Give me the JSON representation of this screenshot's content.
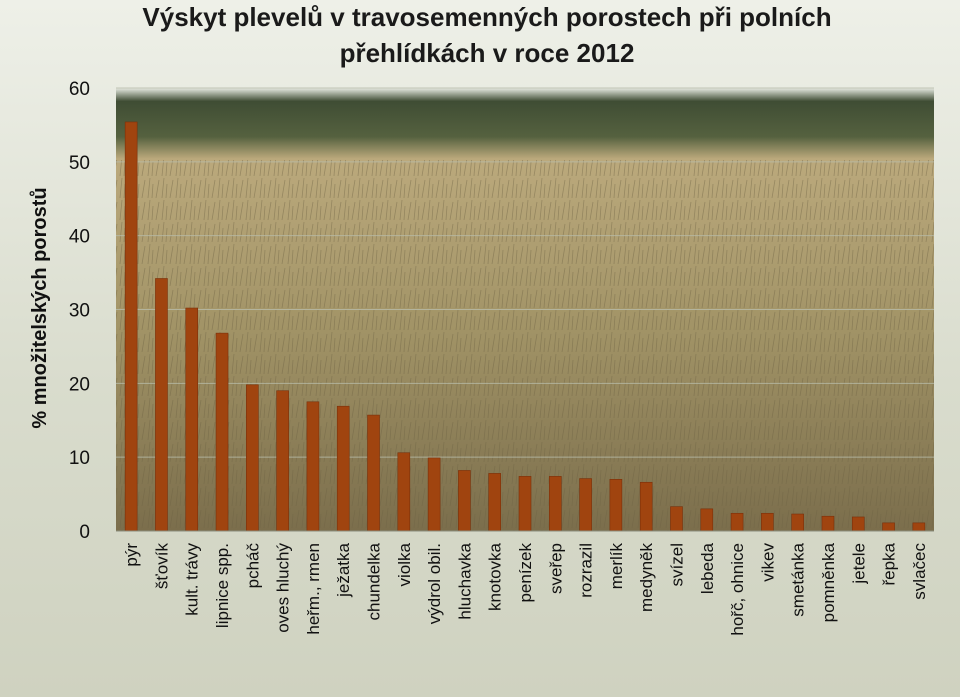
{
  "colors": {
    "bar": "#a0440f",
    "bar_edge": "#7a300a",
    "grid": "#b8bcaa",
    "sky": "#e8ebe3",
    "treeline": "#3f4d34",
    "field_light": "#bba97c",
    "field_dark": "#7b6e4c"
  },
  "chart_data": {
    "type": "bar",
    "title": "Výskyt plevelů v travosemenných porostech při polních přehlídkách v roce 2012",
    "title_lines": [
      "Výskyt plevelů v travosemenných porostech při polních",
      "přehlídkách v roce 2012"
    ],
    "xlabel": "",
    "ylabel": "% množitelských porostů",
    "ylim": [
      0,
      60
    ],
    "yticks": [
      0,
      10,
      20,
      30,
      40,
      50,
      60
    ],
    "grid": true,
    "categories": [
      "pýr",
      "šťovík",
      "kult. trávy",
      "lipnice spp.",
      "pcháč",
      "oves hluchý",
      "heřm., rmen",
      "ježatka",
      "chundelka",
      "violka",
      "výdrol obil.",
      "hluchavka",
      "knotovka",
      "penízek",
      "sveřep",
      "rozrazil",
      "merlík",
      "medyněk",
      "svízel",
      "lebeda",
      "hořč, ohnice",
      "vikev",
      "smetánka",
      "pomněnka",
      "jetele",
      "řepka",
      "svlačec"
    ],
    "values": [
      55.4,
      34.2,
      30.2,
      26.8,
      19.8,
      19.0,
      17.5,
      16.9,
      15.7,
      10.6,
      9.9,
      8.2,
      7.8,
      7.4,
      7.4,
      7.1,
      7.0,
      6.6,
      3.3,
      3.0,
      2.4,
      2.4,
      2.3,
      2.0,
      1.9,
      1.1,
      1.1
    ]
  }
}
